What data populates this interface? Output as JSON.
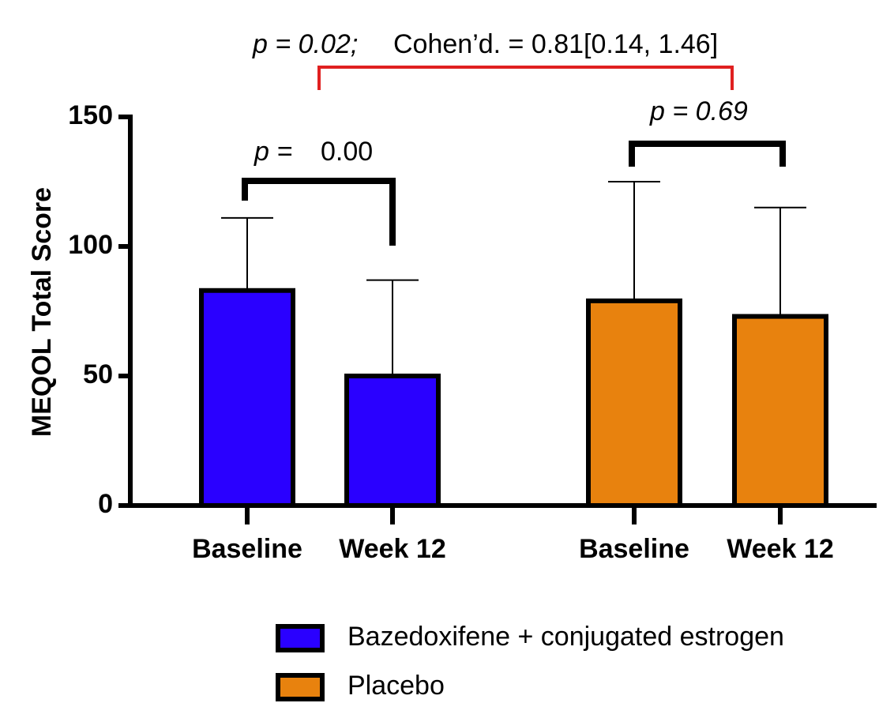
{
  "chart_data": {
    "type": "bar",
    "y_label": "MEQOL Total Score",
    "categories": [
      "Baseline",
      "Week 12",
      "Baseline",
      "Week 12"
    ],
    "series": [
      {
        "name": "Bazedoxifene + conjugated estrogen",
        "color": "#2a00ff",
        "values": [
          83,
          50,
          null,
          null
        ],
        "errors": [
          28,
          37,
          null,
          null
        ]
      },
      {
        "name": "Placebo",
        "color": "#e8820e",
        "values": [
          null,
          null,
          79,
          73
        ],
        "errors": [
          null,
          null,
          46,
          42
        ]
      }
    ],
    "ylim": [
      0,
      150
    ],
    "yticks": [
      0,
      50,
      100,
      150
    ],
    "annotations": [
      "p = 0.02;",
      "Cohen’d. = 0.81[0.14, 1.46]",
      "p =",
      "0.00",
      "p = 0.69"
    ]
  }
}
